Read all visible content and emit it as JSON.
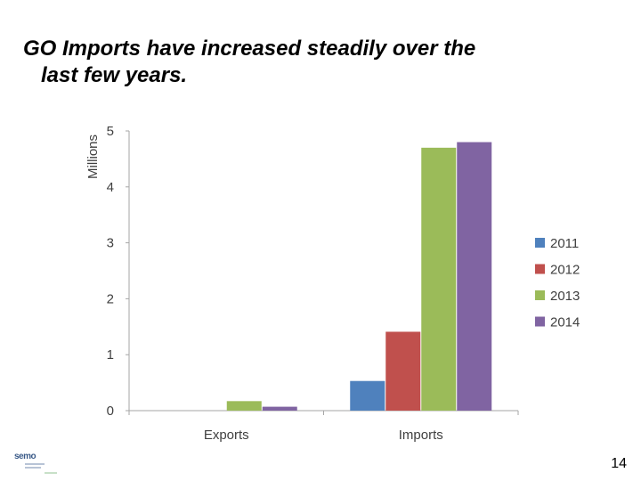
{
  "slide": {
    "title_line1": "GO Imports have increased steadily over the",
    "title_line2": "last few years.",
    "page_number": "14",
    "logo_text": "semo"
  },
  "chart_data": {
    "type": "bar",
    "title": "",
    "xlabel": "",
    "ylabel": "Millions",
    "ylim": [
      0,
      5
    ],
    "yticks": [
      0,
      1,
      2,
      3,
      4,
      5
    ],
    "categories": [
      "Exports",
      "Imports"
    ],
    "series": [
      {
        "name": "2011",
        "color": "#4f81bd",
        "values": [
          0,
          0.53
        ]
      },
      {
        "name": "2012",
        "color": "#c0504d",
        "values": [
          0,
          1.41
        ]
      },
      {
        "name": "2013",
        "color": "#9bbb59",
        "values": [
          0.17,
          4.7
        ]
      },
      {
        "name": "2014",
        "color": "#8064a2",
        "values": [
          0.07,
          4.8
        ]
      }
    ],
    "legend_position": "right",
    "grid": false
  }
}
